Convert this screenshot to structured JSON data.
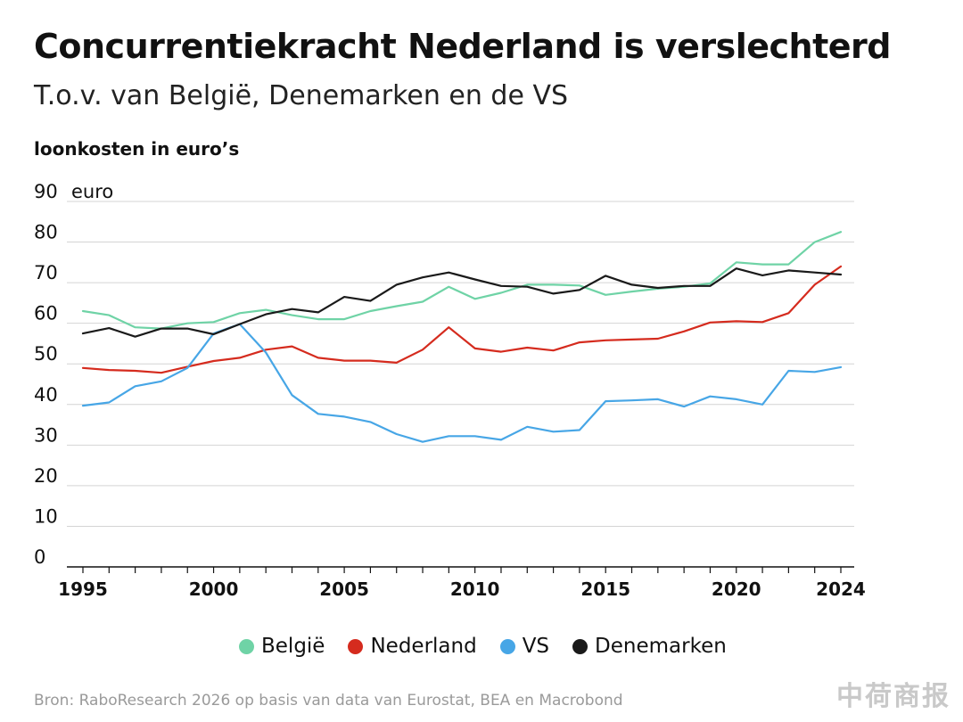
{
  "header": {
    "title": "Concurrentiekracht Nederland is verslechterd",
    "subtitle": "T.o.v. van België, Denemarken en de VS",
    "unit_label": "loonkosten in euro’s"
  },
  "source": "Bron: RaboResearch 2026 op basis van data van Eurostat, BEA en Macrobond",
  "watermark": "中荷商报",
  "chart_data": {
    "type": "line",
    "x": [
      1995,
      1996,
      1997,
      1998,
      1999,
      2000,
      2001,
      2002,
      2003,
      2004,
      2005,
      2006,
      2007,
      2008,
      2009,
      2010,
      2011,
      2012,
      2013,
      2014,
      2015,
      2016,
      2017,
      2018,
      2019,
      2020,
      2021,
      2022,
      2023,
      2024
    ],
    "x_tick_labels": [
      "1995",
      "2000",
      "2005",
      "2010",
      "2015",
      "2020",
      "2024"
    ],
    "x_ticks": [
      1995,
      2000,
      2005,
      2010,
      2015,
      2020,
      2024
    ],
    "y_ticks": [
      0,
      10,
      20,
      30,
      40,
      50,
      60,
      70,
      80,
      90
    ],
    "y_unit": "euro",
    "ylim": [
      0,
      90
    ],
    "grid": true,
    "legend_position": "bottom",
    "series": [
      {
        "name": "België",
        "color": "#6fd3a6",
        "values": [
          63,
          62,
          59,
          58.7,
          60,
          60.3,
          62.5,
          63.3,
          62,
          61,
          61,
          63,
          64.2,
          65.3,
          69,
          66,
          67.5,
          69.5,
          69.5,
          69.3,
          67,
          67.8,
          68.5,
          69,
          69.8,
          75,
          74.5,
          74.5,
          80,
          82.5
        ]
      },
      {
        "name": "Nederland",
        "color": "#d52b1e",
        "values": [
          49,
          48.5,
          48.3,
          47.8,
          49.3,
          50.7,
          51.5,
          53.5,
          54.3,
          51.5,
          50.8,
          50.8,
          50.3,
          53.5,
          59,
          53.8,
          53,
          54,
          53.3,
          55.3,
          55.8,
          56,
          56.2,
          58,
          60.2,
          60.5,
          60.3,
          62.5,
          69.5,
          74
        ]
      },
      {
        "name": "VS",
        "color": "#47a6e6",
        "values": [
          39.7,
          40.5,
          44.5,
          45.7,
          49,
          57.5,
          59.8,
          52.8,
          42.3,
          37.7,
          37,
          35.7,
          32.7,
          30.8,
          32.2,
          32.2,
          31.3,
          34.5,
          33.3,
          33.7,
          40.8,
          41,
          41.3,
          39.5,
          42,
          41.3,
          40,
          48.3,
          48,
          49.2
        ]
      },
      {
        "name": "Denemarken",
        "color": "#1a1a1a",
        "values": [
          57.5,
          58.8,
          56.7,
          58.7,
          58.7,
          57.3,
          59.8,
          62.2,
          63.5,
          62.7,
          66.5,
          65.5,
          69.5,
          71.3,
          72.5,
          70.8,
          69.2,
          69,
          67.3,
          68.2,
          71.7,
          69.5,
          68.7,
          69.2,
          69.2,
          73.5,
          71.8,
          73,
          72.5,
          72
        ]
      }
    ]
  }
}
